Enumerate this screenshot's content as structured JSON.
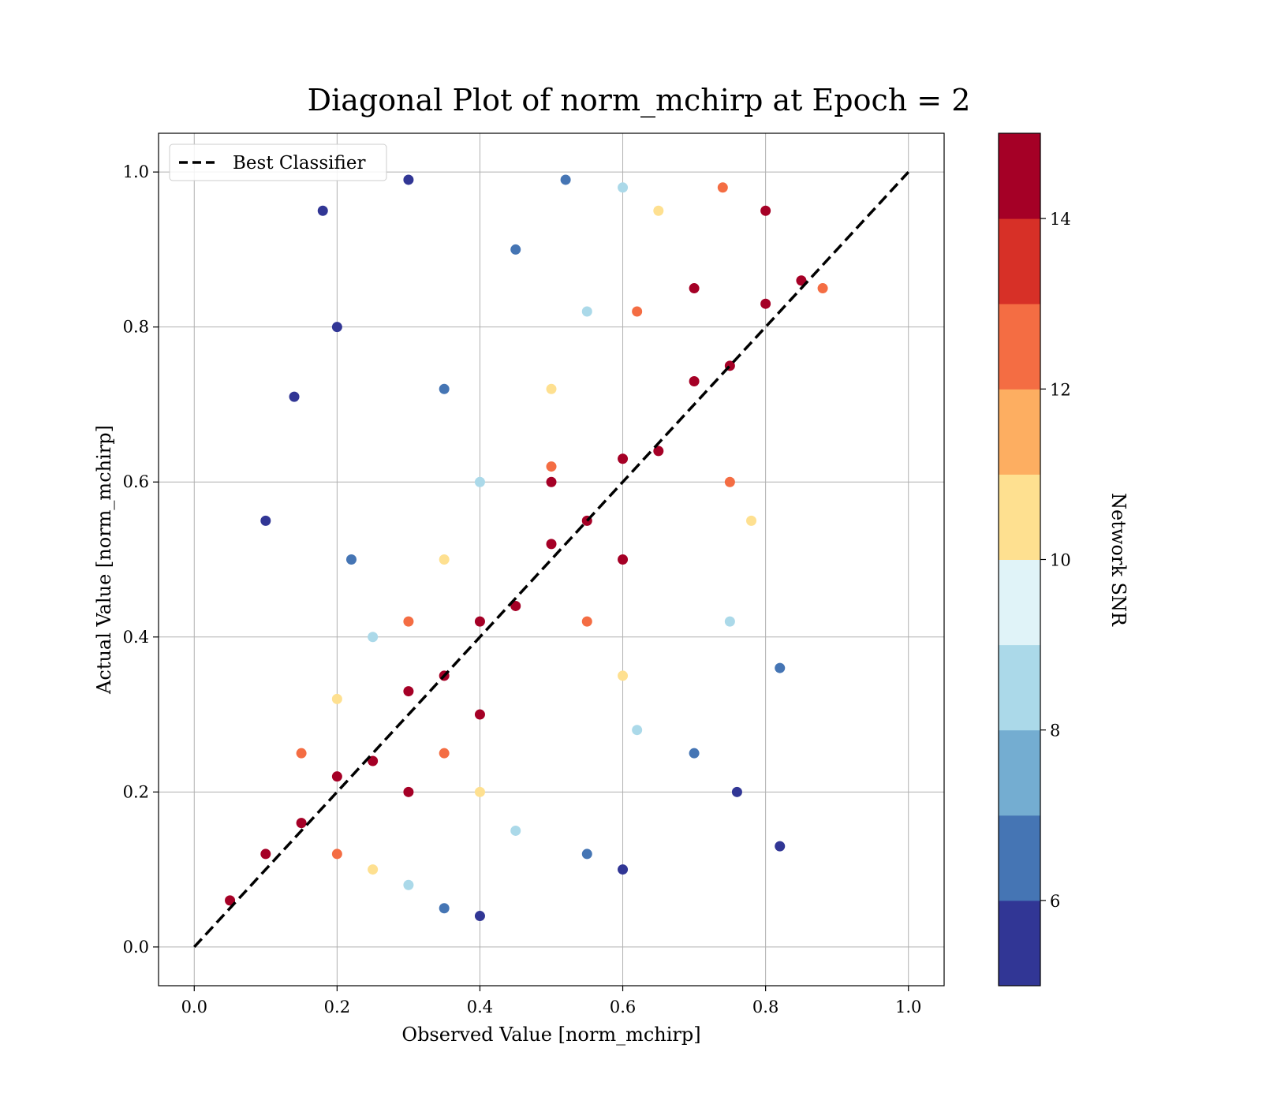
{
  "chart_data": {
    "type": "scatter",
    "title": "Diagonal Plot of norm_mchirp at Epoch = 2",
    "xlabel": "Observed Value [norm_mchirp]",
    "ylabel": "Actual Value [norm_mchirp]",
    "xlim": [
      -0.05,
      1.05
    ],
    "ylim": [
      -0.05,
      1.05
    ],
    "xticks": [
      {
        "value": 0.0,
        "label": "0.0"
      },
      {
        "value": 0.2,
        "label": "0.2"
      },
      {
        "value": 0.4,
        "label": "0.4"
      },
      {
        "value": 0.6,
        "label": "0.6"
      },
      {
        "value": 0.8,
        "label": "0.8"
      },
      {
        "value": 1.0,
        "label": "1.0"
      }
    ],
    "yticks": [
      {
        "value": 0.0,
        "label": "0.0"
      },
      {
        "value": 0.2,
        "label": "0.2"
      },
      {
        "value": 0.4,
        "label": "0.4"
      },
      {
        "value": 0.6,
        "label": "0.6"
      },
      {
        "value": 0.8,
        "label": "0.8"
      },
      {
        "value": 1.0,
        "label": "1.0"
      }
    ],
    "grid": true,
    "legend": {
      "position": "top-left",
      "entries": [
        {
          "label": "Best Classifier",
          "style": "black dashed line"
        }
      ]
    },
    "reference_line": {
      "label": "Best Classifier",
      "x": [
        0.0,
        1.0
      ],
      "y": [
        0.0,
        1.0
      ],
      "color": "#000000"
    },
    "colorbar": {
      "label": "Network SNR",
      "range": [
        5,
        15
      ],
      "ticks": [
        {
          "value": 6,
          "label": "6"
        },
        {
          "value": 8,
          "label": "8"
        },
        {
          "value": 10,
          "label": "10"
        },
        {
          "value": 12,
          "label": "12"
        },
        {
          "value": 14,
          "label": "14"
        }
      ],
      "colormap": [
        "#313695",
        "#4575b4",
        "#74add1",
        "#abd9e9",
        "#e0f3f8",
        "#fee090",
        "#fdae61",
        "#f46d43",
        "#d73027",
        "#a50026"
      ]
    },
    "series": [
      {
        "snr": 14.5,
        "points": [
          [
            0.05,
            0.06
          ],
          [
            0.1,
            0.12
          ],
          [
            0.15,
            0.16
          ],
          [
            0.2,
            0.22
          ],
          [
            0.25,
            0.24
          ],
          [
            0.3,
            0.33
          ],
          [
            0.35,
            0.35
          ],
          [
            0.4,
            0.42
          ],
          [
            0.45,
            0.44
          ],
          [
            0.5,
            0.52
          ],
          [
            0.55,
            0.55
          ],
          [
            0.6,
            0.63
          ],
          [
            0.65,
            0.64
          ],
          [
            0.7,
            0.73
          ],
          [
            0.75,
            0.75
          ],
          [
            0.8,
            0.83
          ],
          [
            0.85,
            0.86
          ],
          [
            0.5,
            0.6
          ],
          [
            0.6,
            0.5
          ],
          [
            0.7,
            0.85
          ],
          [
            0.8,
            0.95
          ],
          [
            0.4,
            0.3
          ],
          [
            0.3,
            0.2
          ]
        ]
      },
      {
        "snr": 12.5,
        "points": [
          [
            0.2,
            0.12
          ],
          [
            0.35,
            0.25
          ],
          [
            0.55,
            0.42
          ],
          [
            0.75,
            0.6
          ],
          [
            0.88,
            0.85
          ],
          [
            0.15,
            0.25
          ],
          [
            0.3,
            0.42
          ],
          [
            0.5,
            0.62
          ],
          [
            0.62,
            0.82
          ],
          [
            0.74,
            0.98
          ]
        ]
      },
      {
        "snr": 10.5,
        "points": [
          [
            0.25,
            0.1
          ],
          [
            0.4,
            0.2
          ],
          [
            0.6,
            0.35
          ],
          [
            0.78,
            0.55
          ],
          [
            0.2,
            0.32
          ],
          [
            0.35,
            0.5
          ],
          [
            0.5,
            0.72
          ],
          [
            0.65,
            0.95
          ]
        ]
      },
      {
        "snr": 8.5,
        "points": [
          [
            0.3,
            0.08
          ],
          [
            0.45,
            0.15
          ],
          [
            0.62,
            0.28
          ],
          [
            0.75,
            0.42
          ],
          [
            0.25,
            0.4
          ],
          [
            0.4,
            0.6
          ],
          [
            0.55,
            0.82
          ],
          [
            0.6,
            0.98
          ]
        ]
      },
      {
        "snr": 6.5,
        "points": [
          [
            0.35,
            0.05
          ],
          [
            0.55,
            0.12
          ],
          [
            0.7,
            0.25
          ],
          [
            0.82,
            0.36
          ],
          [
            0.22,
            0.5
          ],
          [
            0.35,
            0.72
          ],
          [
            0.45,
            0.9
          ],
          [
            0.52,
            0.99
          ]
        ]
      },
      {
        "snr": 5.2,
        "points": [
          [
            0.4,
            0.04
          ],
          [
            0.6,
            0.1
          ],
          [
            0.76,
            0.2
          ],
          [
            0.82,
            0.13
          ],
          [
            0.1,
            0.55
          ],
          [
            0.18,
            0.95
          ],
          [
            0.3,
            0.99
          ],
          [
            0.14,
            0.71
          ],
          [
            0.2,
            0.8
          ]
        ]
      }
    ]
  }
}
